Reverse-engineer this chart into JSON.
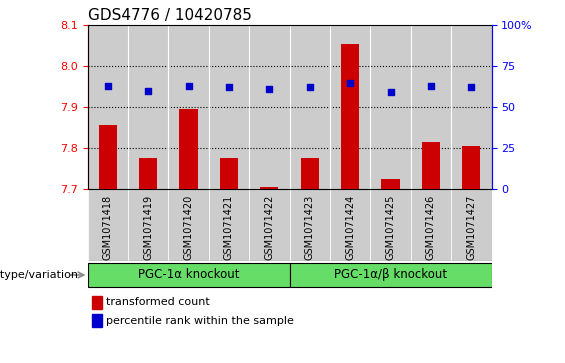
{
  "title": "GDS4776 / 10420785",
  "samples": [
    "GSM1071418",
    "GSM1071419",
    "GSM1071420",
    "GSM1071421",
    "GSM1071422",
    "GSM1071423",
    "GSM1071424",
    "GSM1071425",
    "GSM1071426",
    "GSM1071427"
  ],
  "bar_values": [
    7.855,
    7.775,
    7.895,
    7.775,
    7.705,
    7.775,
    8.055,
    7.725,
    7.815,
    7.805
  ],
  "percentile_values": [
    63,
    60,
    63,
    62,
    61,
    62,
    65,
    59,
    63,
    62
  ],
  "ymin": 7.7,
  "ymax": 8.1,
  "yticks": [
    7.7,
    7.8,
    7.9,
    8.0,
    8.1
  ],
  "right_yticks": [
    0,
    25,
    50,
    75,
    100
  ],
  "bar_color": "#cc0000",
  "dot_color": "#0000cc",
  "bar_width": 0.45,
  "group1_label": "PGC-1α knockout",
  "group2_label": "PGC-1α/β knockout",
  "group1_indices": [
    0,
    1,
    2,
    3,
    4
  ],
  "group2_indices": [
    5,
    6,
    7,
    8,
    9
  ],
  "group_color": "#66dd66",
  "xlabel_label": "genotype/variation",
  "legend_bar_label": "transformed count",
  "legend_dot_label": "percentile rank within the sample",
  "title_fontsize": 11,
  "tick_fontsize": 8,
  "sample_fontsize": 7,
  "bg_color": "#cccccc",
  "white_bg": "#ffffff"
}
